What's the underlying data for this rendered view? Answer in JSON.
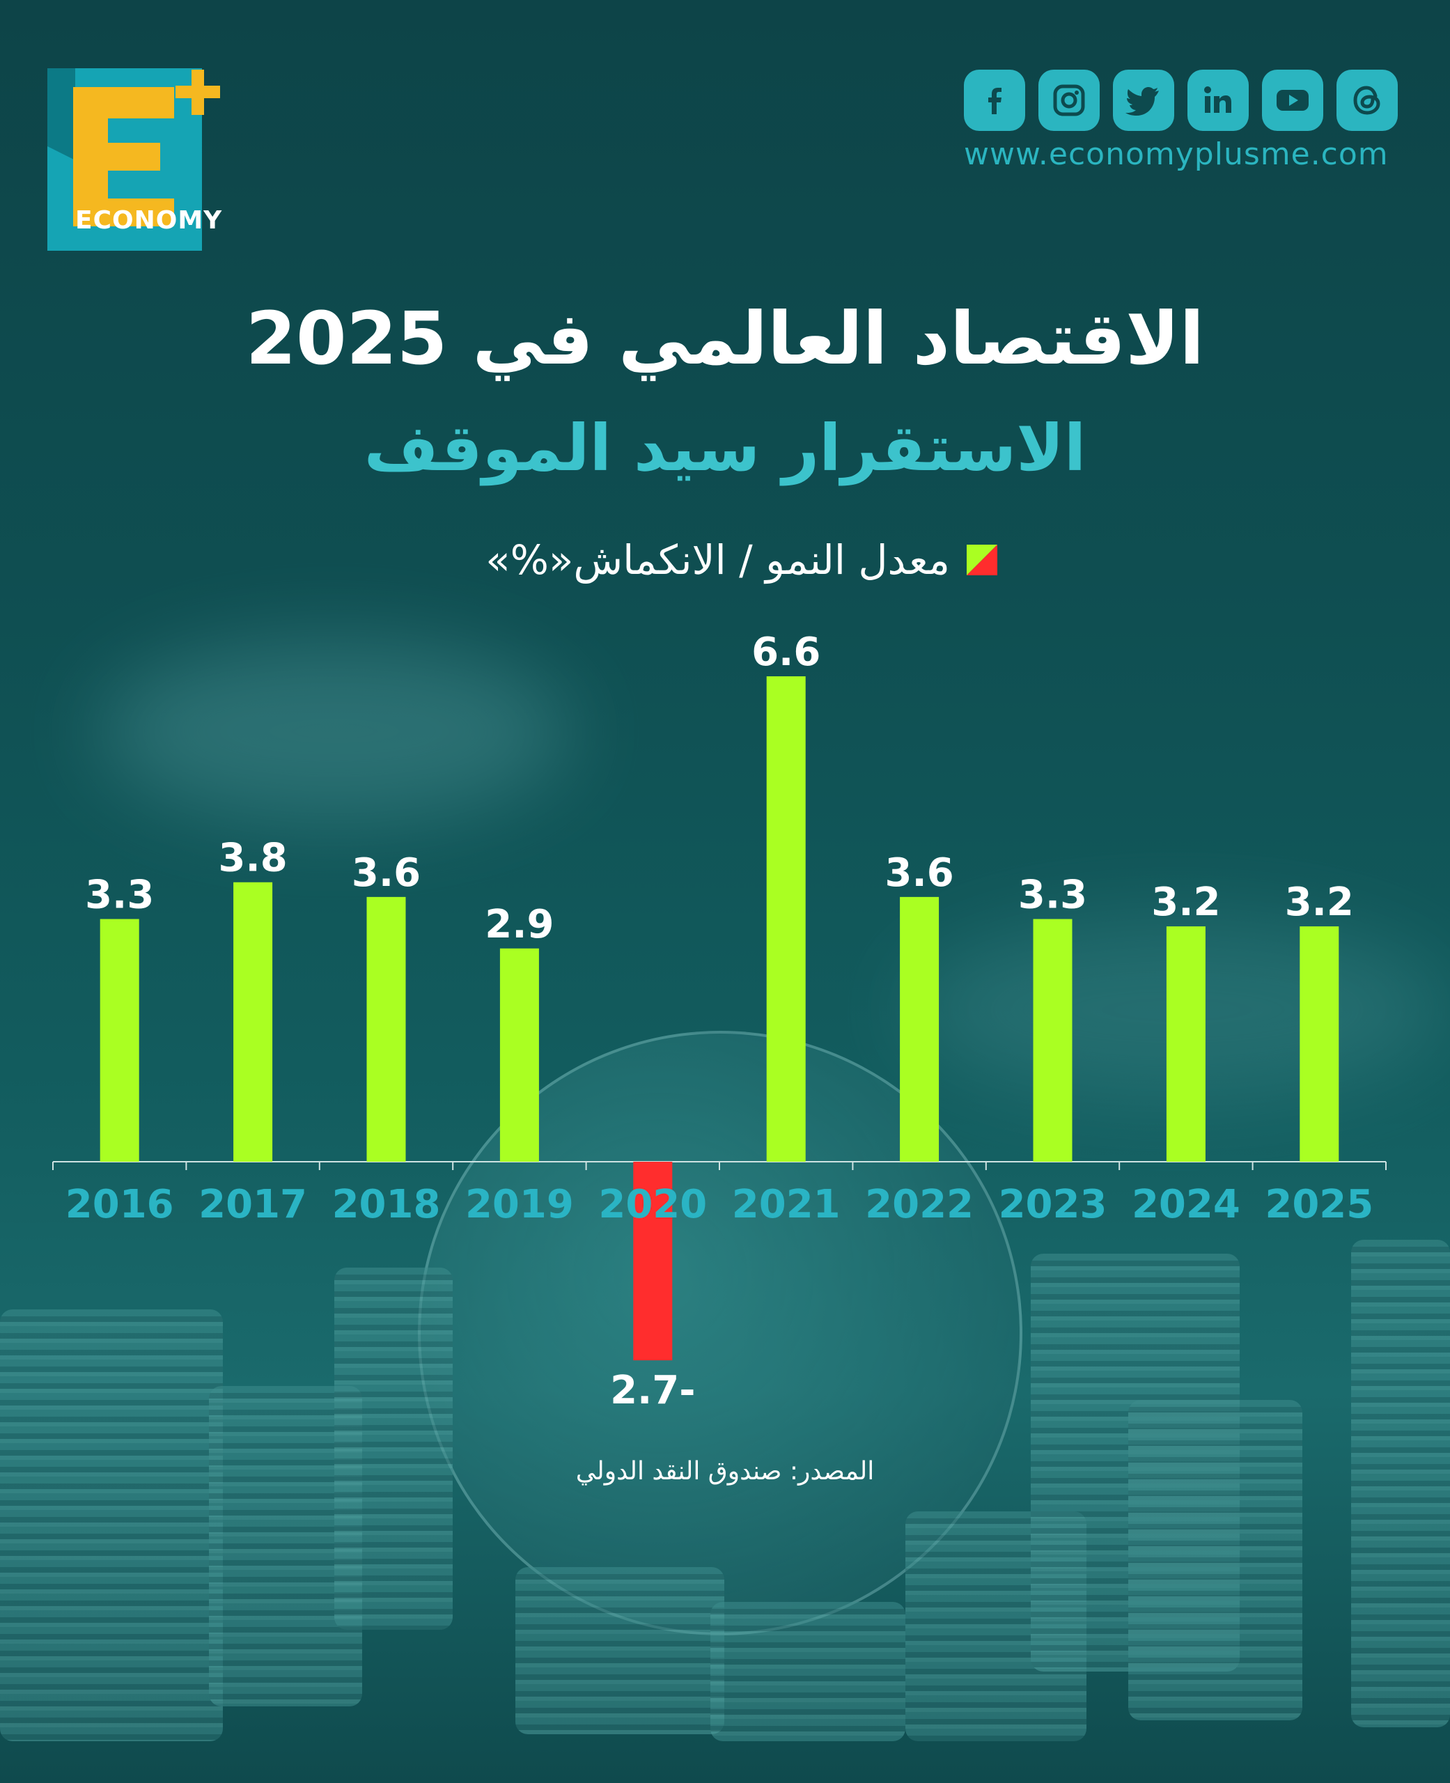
{
  "brand": {
    "logo_letter": "E",
    "logo_word": "ECONOMY",
    "website": "www.economyplusme.com",
    "social_icons": [
      "facebook-icon",
      "instagram-icon",
      "twitter-icon",
      "linkedin-icon",
      "youtube-icon",
      "threads-icon"
    ],
    "accent": "#2bb5c0",
    "logo_yellow": "#f5b820",
    "logo_teal": "#15a4b4"
  },
  "header": {
    "title": "الاقتصاد العالمي في 2025",
    "subtitle": "الاستقرار سيد الموقف"
  },
  "legend": {
    "label": "معدل النمو / الانكماش«%»"
  },
  "footer": {
    "source": "المصدر: صندوق النقد الدولي"
  },
  "chart_data": {
    "type": "bar",
    "categories": [
      "2016",
      "2017",
      "2018",
      "2019",
      "2020",
      "2021",
      "2022",
      "2023",
      "2024",
      "2025"
    ],
    "values": [
      3.3,
      3.8,
      3.6,
      2.9,
      -2.7,
      6.6,
      3.6,
      3.3,
      3.2,
      3.2
    ],
    "value_labels": [
      "3.3",
      "3.8",
      "3.6",
      "2.9",
      "2.7-",
      "6.6",
      "3.6",
      "3.3",
      "3.2",
      "3.2"
    ],
    "positive_color": "#aaff22",
    "negative_color": "#ff2d2d",
    "tick_color": "#2ab4c4",
    "ylim": [
      -2.7,
      6.6
    ],
    "grid": false
  }
}
